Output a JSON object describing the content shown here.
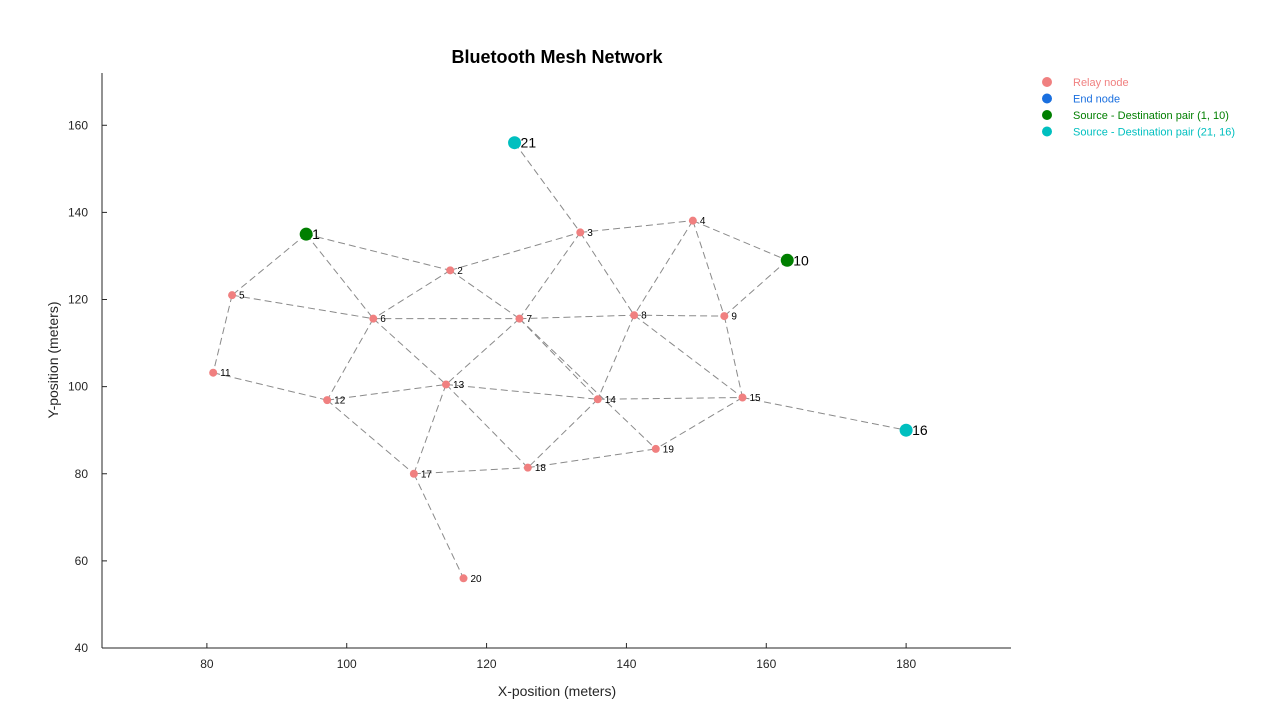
{
  "chart_data": {
    "type": "scatter",
    "title": "Bluetooth Mesh Network",
    "xlabel": "X-position (meters)",
    "ylabel": "Y-position (meters)",
    "xlim": [
      65,
      195
    ],
    "ylim": [
      40,
      172
    ],
    "xticks": [
      80,
      100,
      120,
      140,
      160,
      180
    ],
    "yticks": [
      40,
      60,
      80,
      100,
      120,
      140,
      160
    ],
    "grid": false,
    "legend_position": "top-right",
    "legend": [
      {
        "label": "Relay node",
        "color": "#f08080"
      },
      {
        "label": "End node",
        "color": "#1a6fdf"
      },
      {
        "label": "Source - Destination pair (1, 10)",
        "color": "#007f00"
      },
      {
        "label": "Source - Destination pair (21, 16)",
        "color": "#00bfbf"
      }
    ],
    "nodes": [
      {
        "id": "1",
        "x": 94.2,
        "y": 135,
        "role": "pair1"
      },
      {
        "id": "2",
        "x": 114.8,
        "y": 126.7,
        "role": "relay"
      },
      {
        "id": "3",
        "x": 133.4,
        "y": 135.4,
        "role": "relay"
      },
      {
        "id": "4",
        "x": 149.5,
        "y": 138.1,
        "role": "relay"
      },
      {
        "id": "5",
        "x": 83.6,
        "y": 121,
        "role": "relay"
      },
      {
        "id": "6",
        "x": 103.8,
        "y": 115.6,
        "role": "relay"
      },
      {
        "id": "7",
        "x": 124.7,
        "y": 115.6,
        "role": "relay"
      },
      {
        "id": "8",
        "x": 141.1,
        "y": 116.4,
        "role": "relay"
      },
      {
        "id": "9",
        "x": 154,
        "y": 116.2,
        "role": "relay"
      },
      {
        "id": "10",
        "x": 163,
        "y": 129,
        "role": "pair1"
      },
      {
        "id": "11",
        "x": 80.9,
        "y": 103.2,
        "role": "relay"
      },
      {
        "id": "12",
        "x": 97.2,
        "y": 96.9,
        "role": "relay"
      },
      {
        "id": "13",
        "x": 114.2,
        "y": 100.5,
        "role": "relay"
      },
      {
        "id": "14",
        "x": 135.9,
        "y": 97.1,
        "role": "relay"
      },
      {
        "id": "15",
        "x": 156.6,
        "y": 97.5,
        "role": "relay"
      },
      {
        "id": "16",
        "x": 180,
        "y": 90,
        "role": "pair2"
      },
      {
        "id": "17",
        "x": 109.6,
        "y": 80,
        "role": "relay"
      },
      {
        "id": "18",
        "x": 125.9,
        "y": 81.4,
        "role": "relay"
      },
      {
        "id": "19",
        "x": 144.2,
        "y": 85.7,
        "role": "relay"
      },
      {
        "id": "20",
        "x": 116.7,
        "y": 56,
        "role": "relay"
      },
      {
        "id": "21",
        "x": 124,
        "y": 156,
        "role": "pair2"
      }
    ],
    "edges": [
      [
        "21",
        "3"
      ],
      [
        "1",
        "5"
      ],
      [
        "1",
        "2"
      ],
      [
        "1",
        "6"
      ],
      [
        "5",
        "6"
      ],
      [
        "5",
        "11"
      ],
      [
        "2",
        "3"
      ],
      [
        "2",
        "6"
      ],
      [
        "2",
        "7"
      ],
      [
        "3",
        "4"
      ],
      [
        "3",
        "7"
      ],
      [
        "3",
        "8"
      ],
      [
        "4",
        "8"
      ],
      [
        "4",
        "9"
      ],
      [
        "4",
        "10"
      ],
      [
        "10",
        "9"
      ],
      [
        "6",
        "7"
      ],
      [
        "7",
        "8"
      ],
      [
        "8",
        "9"
      ],
      [
        "6",
        "12"
      ],
      [
        "6",
        "13"
      ],
      [
        "7",
        "13"
      ],
      [
        "7",
        "14"
      ],
      [
        "8",
        "14"
      ],
      [
        "8",
        "15"
      ],
      [
        "9",
        "15"
      ],
      [
        "11",
        "12"
      ],
      [
        "12",
        "13"
      ],
      [
        "12",
        "17"
      ],
      [
        "13",
        "14"
      ],
      [
        "13",
        "17"
      ],
      [
        "13",
        "18"
      ],
      [
        "14",
        "15"
      ],
      [
        "14",
        "18"
      ],
      [
        "7",
        "19"
      ],
      [
        "15",
        "19"
      ],
      [
        "15",
        "16"
      ],
      [
        "17",
        "18"
      ],
      [
        "18",
        "19"
      ],
      [
        "17",
        "20"
      ]
    ]
  }
}
